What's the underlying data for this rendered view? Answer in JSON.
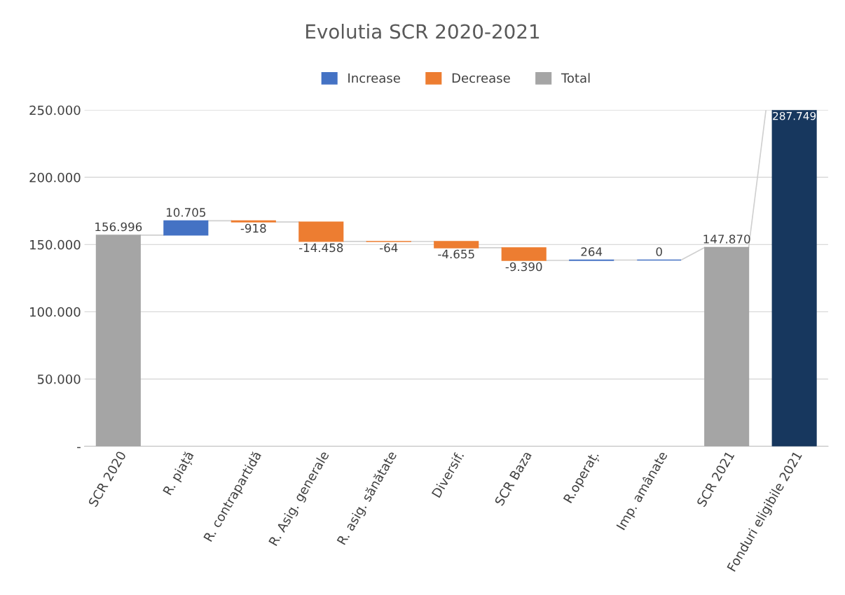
{
  "chart_data": {
    "type": "bar",
    "title": "Evolutia SCR 2020-2021",
    "categories": [
      "SCR 2020",
      "R. piață",
      "R. contrapartidă",
      "R. Asig. generale",
      "R. asig. sănătate",
      "Diversif.",
      "SCR Baza",
      "R.operaț.",
      "Imp. amânate",
      "SCR 2021",
      "Fonduri eligibile 2021"
    ],
    "series": [
      {
        "name": "Increase",
        "color": "#4472c4",
        "base": [
          null,
          156996,
          null,
          null,
          null,
          null,
          null,
          138216,
          138480,
          null,
          null
        ],
        "values": [
          null,
          10705,
          null,
          null,
          null,
          null,
          null,
          264,
          0,
          null,
          null
        ],
        "value_labels": [
          null,
          "10.705",
          null,
          null,
          null,
          null,
          null,
          "264",
          "0",
          null,
          null
        ]
      },
      {
        "name": "Decrease",
        "color": "#ed7d31",
        "base": [
          null,
          null,
          167701,
          166783,
          152325,
          152261,
          147606,
          null,
          null,
          null,
          null
        ],
        "values": [
          null,
          null,
          -918,
          -14458,
          -64,
          -4655,
          -9390,
          null,
          null,
          null,
          null
        ],
        "value_labels": [
          null,
          null,
          "-918",
          "-14.458",
          "-64",
          "-4.655",
          "-9.390",
          null,
          null,
          null,
          null
        ]
      },
      {
        "name": "Total",
        "color": "#a5a5a5",
        "base": [
          0,
          null,
          null,
          null,
          null,
          null,
          null,
          null,
          null,
          0,
          null
        ],
        "values": [
          156996,
          null,
          null,
          null,
          null,
          null,
          null,
          null,
          null,
          147870,
          null
        ],
        "value_labels": [
          "156.996",
          null,
          null,
          null,
          null,
          null,
          null,
          null,
          null,
          "147.870",
          null
        ]
      },
      {
        "color": "#17375e",
        "base": [
          null,
          null,
          null,
          null,
          null,
          null,
          null,
          null,
          null,
          null,
          0
        ],
        "values": [
          null,
          null,
          null,
          null,
          null,
          null,
          null,
          null,
          null,
          null,
          287749
        ],
        "value_labels": [
          null,
          null,
          null,
          null,
          null,
          null,
          null,
          null,
          null,
          null,
          "287.749"
        ]
      }
    ],
    "ylim": [
      0,
      250000
    ],
    "yticks": [
      {
        "value": 0,
        "label": "-"
      },
      {
        "value": 50000,
        "label": "50.000"
      },
      {
        "value": 100000,
        "label": "100.000"
      },
      {
        "value": 150000,
        "label": "150.000"
      },
      {
        "value": 200000,
        "label": "200.000"
      },
      {
        "value": 250000,
        "label": "250.000"
      }
    ],
    "grid": "y",
    "legend": "top"
  }
}
